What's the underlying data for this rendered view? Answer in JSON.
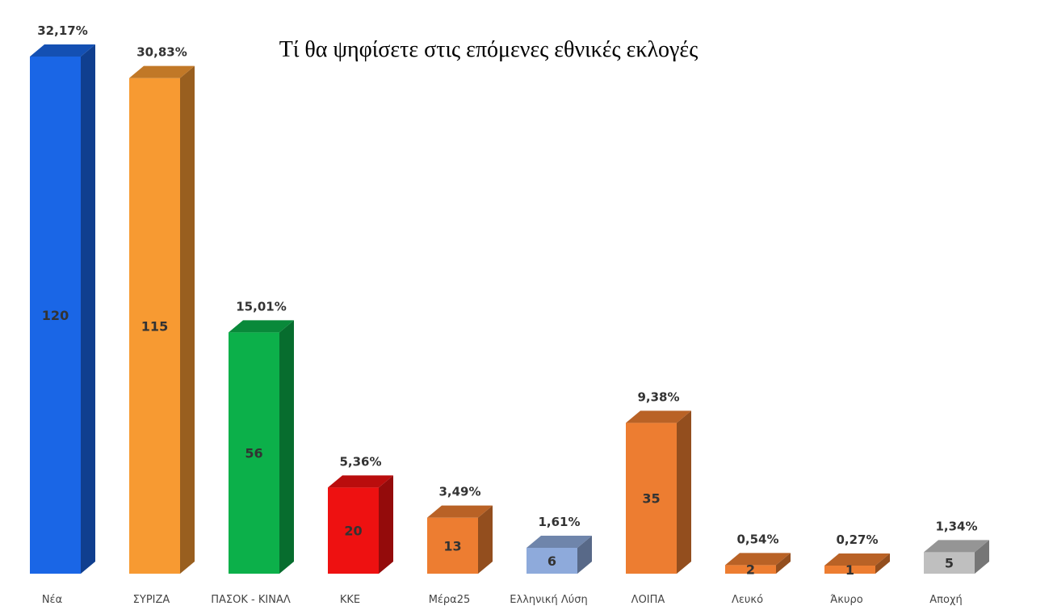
{
  "chart_data": {
    "type": "bar",
    "title": "Τί θα ψηφίσετε στις επόμενες εθνικές εκλογές",
    "categories": [
      "Νέα",
      "ΣΥΡΙΖΑ",
      "ΠΑΣΟΚ - ΚΙΝΑΛ",
      "ΚΚΕ",
      "Μέρα25",
      "Ελληνική Λύση",
      "ΛΟΙΠΑ",
      "Λευκό",
      "Άκυρο",
      "Αποχή"
    ],
    "values": [
      120,
      115,
      56,
      20,
      13,
      6,
      35,
      2,
      1,
      5
    ],
    "percent_labels": [
      "32,17%",
      "30,83%",
      "15,01%",
      "5,36%",
      "3,49%",
      "1,61%",
      "9,38%",
      "0,54%",
      "0,27%",
      "1,34%"
    ],
    "colors": [
      "#1a66e6",
      "#f79a32",
      "#0cb04a",
      "#ee1111",
      "#ed7d31",
      "#8eaadb",
      "#ed7d31",
      "#ed7d31",
      "#ed7d31",
      "#bfbfbf"
    ],
    "style": "3d-column",
    "grid": false,
    "legend": "none"
  }
}
